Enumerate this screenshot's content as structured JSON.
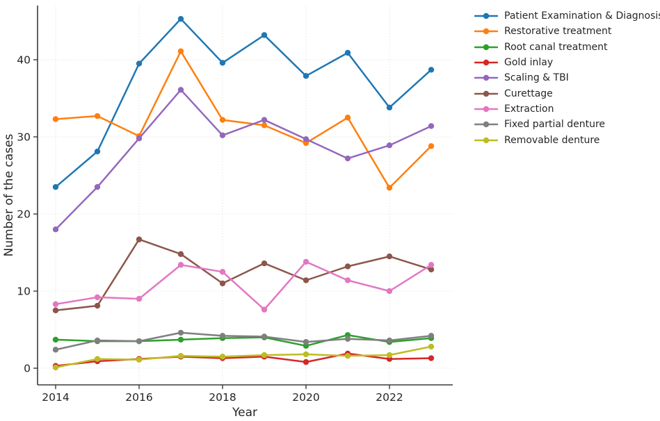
{
  "chart_data": {
    "type": "line",
    "title": "",
    "xlabel": "Year",
    "ylabel": "Number of the cases",
    "x": [
      2014,
      2015,
      2016,
      2017,
      2018,
      2019,
      2020,
      2021,
      2022,
      2023
    ],
    "x_tick_values": [
      2014,
      2016,
      2018,
      2020,
      2022
    ],
    "x_tick_labels": [
      "2014",
      "2016",
      "2018",
      "2020",
      "2022"
    ],
    "y_tick_values": [
      0,
      10,
      20,
      30,
      40
    ],
    "y_tick_labels": [
      "0",
      "10",
      "20",
      "30",
      "40"
    ],
    "xlim": [
      2013.55,
      2023.5
    ],
    "ylim": [
      -2.2,
      47
    ],
    "grid": true,
    "grid_style": "dotted",
    "legend_position": "right-outside",
    "marker": "circle",
    "series": [
      {
        "name": "Patient Examination & Diagnosis",
        "color": "#1f77b4",
        "values": [
          23.5,
          28.1,
          39.5,
          45.3,
          39.6,
          43.2,
          37.9,
          40.9,
          33.8,
          38.7
        ]
      },
      {
        "name": "Restorative treatment",
        "color": "#ff7f0e",
        "values": [
          32.3,
          32.7,
          30.1,
          41.1,
          32.2,
          31.5,
          29.2,
          32.5,
          23.4,
          28.8
        ]
      },
      {
        "name": "Root canal treatment",
        "color": "#2ca02c",
        "values": [
          3.7,
          3.5,
          3.5,
          3.7,
          3.9,
          4.0,
          2.9,
          4.3,
          3.4,
          3.9
        ]
      },
      {
        "name": "Gold inlay",
        "color": "#d62728",
        "values": [
          0.3,
          0.9,
          1.2,
          1.5,
          1.3,
          1.5,
          0.8,
          1.9,
          1.2,
          1.3
        ]
      },
      {
        "name": "Scaling & TBI",
        "color": "#9467bd",
        "values": [
          18.0,
          23.5,
          29.8,
          36.1,
          30.2,
          32.2,
          29.7,
          27.2,
          28.9,
          31.4
        ]
      },
      {
        "name": "Curettage",
        "color": "#8c564b",
        "values": [
          7.5,
          8.1,
          16.7,
          14.8,
          11.0,
          13.6,
          11.4,
          13.2,
          14.5,
          12.8
        ]
      },
      {
        "name": "Extraction",
        "color": "#e377c2",
        "values": [
          8.3,
          9.2,
          9.0,
          13.4,
          12.5,
          7.6,
          13.8,
          11.4,
          10.0,
          13.4
        ]
      },
      {
        "name": "Fixed partial denture",
        "color": "#7f7f7f",
        "values": [
          2.4,
          3.6,
          3.5,
          4.6,
          4.2,
          4.1,
          3.4,
          3.8,
          3.6,
          4.2
        ]
      },
      {
        "name": "Removable denture",
        "color": "#bcbd22",
        "values": [
          0.1,
          1.2,
          1.1,
          1.6,
          1.5,
          1.7,
          1.8,
          1.6,
          1.7,
          2.8
        ]
      }
    ]
  },
  "colors": {
    "background": "#ffffff",
    "axis": "#3a3a3a",
    "grid": "#e9e4da",
    "text": "#262626"
  }
}
